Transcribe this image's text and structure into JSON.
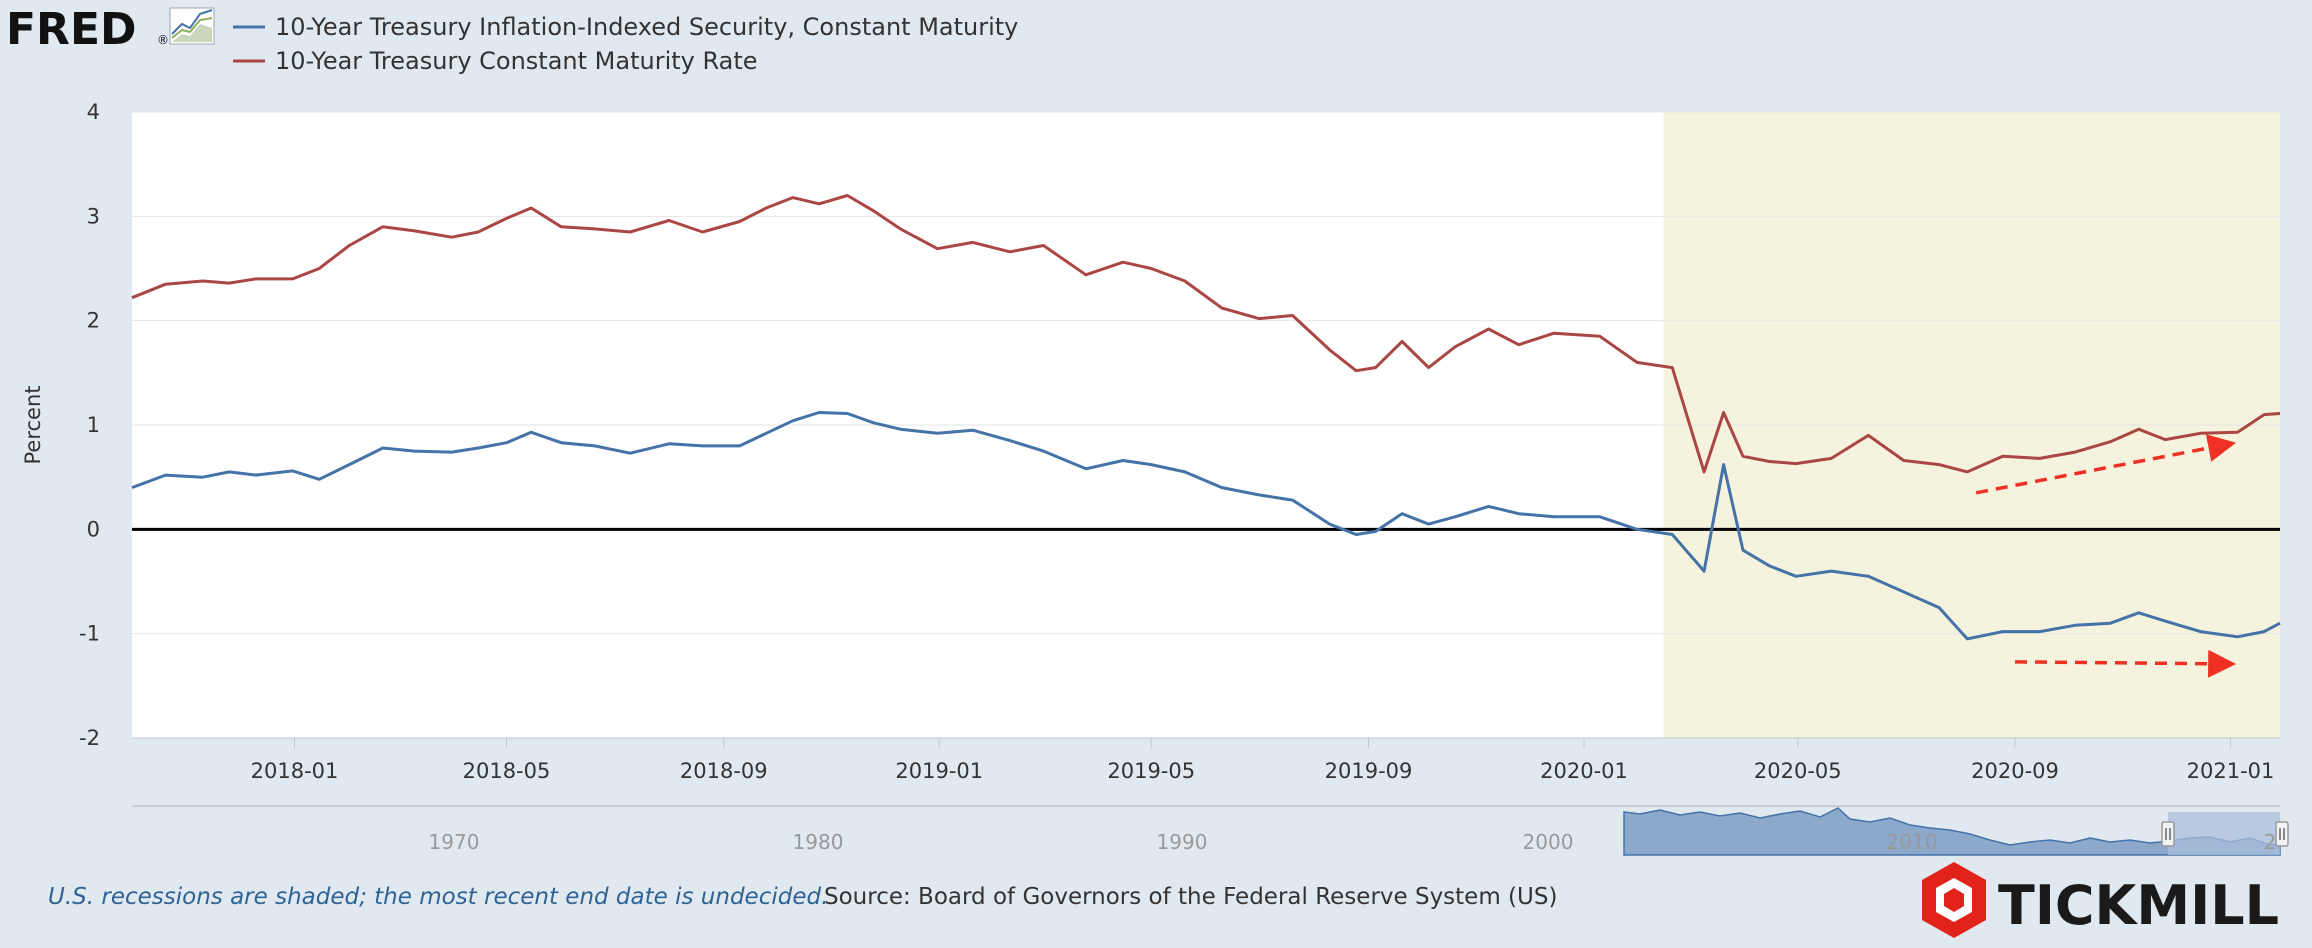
{
  "header": {
    "logo_text": "FRED",
    "logo_mark": "®",
    "logo_icon": "line-chart-icon"
  },
  "footer": {
    "recession_note": "U.S. recessions are shaded; the most recent end date is undecided.",
    "source": "Source: Board of Governors of the Federal Reserve System (US)",
    "watermark": "TICKMILL"
  },
  "chart_data": {
    "type": "line",
    "ylabel": "Percent",
    "ylim": [
      -2,
      4
    ],
    "yticks": [
      -2,
      -1,
      0,
      1,
      2,
      3,
      4
    ],
    "xlim": [
      "2017-10-01",
      "2021-01-29"
    ],
    "xticks": [
      "2018-01",
      "2018-05",
      "2018-09",
      "2019-01",
      "2019-05",
      "2019-09",
      "2020-01",
      "2020-05",
      "2020-09",
      "2021-01"
    ],
    "grid": true,
    "legend_position": "top-left",
    "zero_line": true,
    "recession_shading": {
      "start": "2020-02-15",
      "end": "2021-01-29",
      "color": "#f5f3dd"
    },
    "series": [
      {
        "name": "10-Year Treasury Inflation-Indexed Security, Constant Maturity",
        "color": "#4572a7",
        "points": [
          [
            "2017-10-01",
            0.4
          ],
          [
            "2017-10-20",
            0.52
          ],
          [
            "2017-11-10",
            0.5
          ],
          [
            "2017-11-25",
            0.55
          ],
          [
            "2017-12-10",
            0.52
          ],
          [
            "2017-12-31",
            0.56
          ],
          [
            "2018-01-15",
            0.48
          ],
          [
            "2018-02-01",
            0.62
          ],
          [
            "2018-02-20",
            0.78
          ],
          [
            "2018-03-10",
            0.75
          ],
          [
            "2018-03-31",
            0.74
          ],
          [
            "2018-04-15",
            0.78
          ],
          [
            "2018-05-01",
            0.83
          ],
          [
            "2018-05-15",
            0.93
          ],
          [
            "2018-06-01",
            0.83
          ],
          [
            "2018-06-20",
            0.8
          ],
          [
            "2018-07-10",
            0.73
          ],
          [
            "2018-08-01",
            0.82
          ],
          [
            "2018-08-20",
            0.8
          ],
          [
            "2018-09-10",
            0.8
          ],
          [
            "2018-09-25",
            0.92
          ],
          [
            "2018-10-10",
            1.04
          ],
          [
            "2018-10-25",
            1.12
          ],
          [
            "2018-11-10",
            1.11
          ],
          [
            "2018-11-25",
            1.02
          ],
          [
            "2018-12-10",
            0.96
          ],
          [
            "2018-12-31",
            0.92
          ],
          [
            "2019-01-20",
            0.95
          ],
          [
            "2019-02-10",
            0.85
          ],
          [
            "2019-03-01",
            0.75
          ],
          [
            "2019-03-25",
            0.58
          ],
          [
            "2019-04-15",
            0.66
          ],
          [
            "2019-05-01",
            0.62
          ],
          [
            "2019-05-20",
            0.55
          ],
          [
            "2019-06-10",
            0.4
          ],
          [
            "2019-07-01",
            0.33
          ],
          [
            "2019-07-20",
            0.28
          ],
          [
            "2019-08-10",
            0.05
          ],
          [
            "2019-08-25",
            -0.05
          ],
          [
            "2019-09-05",
            -0.02
          ],
          [
            "2019-09-20",
            0.15
          ],
          [
            "2019-10-05",
            0.05
          ],
          [
            "2019-10-20",
            0.12
          ],
          [
            "2019-11-08",
            0.22
          ],
          [
            "2019-11-25",
            0.15
          ],
          [
            "2019-12-15",
            0.12
          ],
          [
            "2020-01-10",
            0.12
          ],
          [
            "2020-01-31",
            0.0
          ],
          [
            "2020-02-20",
            -0.05
          ],
          [
            "2020-03-09",
            -0.4
          ],
          [
            "2020-03-20",
            0.62
          ],
          [
            "2020-03-31",
            -0.2
          ],
          [
            "2020-04-15",
            -0.35
          ],
          [
            "2020-04-30",
            -0.45
          ],
          [
            "2020-05-20",
            -0.4
          ],
          [
            "2020-06-10",
            -0.45
          ],
          [
            "2020-06-30",
            -0.6
          ],
          [
            "2020-07-20",
            -0.75
          ],
          [
            "2020-08-05",
            -1.05
          ],
          [
            "2020-08-25",
            -0.98
          ],
          [
            "2020-09-15",
            -0.98
          ],
          [
            "2020-10-05",
            -0.92
          ],
          [
            "2020-10-25",
            -0.9
          ],
          [
            "2020-11-10",
            -0.8
          ],
          [
            "2020-11-25",
            -0.88
          ],
          [
            "2020-12-15",
            -0.98
          ],
          [
            "2021-01-05",
            -1.03
          ],
          [
            "2021-01-20",
            -0.98
          ],
          [
            "2021-01-29",
            -0.9
          ]
        ]
      },
      {
        "name": "10-Year Treasury Constant Maturity Rate",
        "color": "#aa4643",
        "points": [
          [
            "2017-10-01",
            2.22
          ],
          [
            "2017-10-20",
            2.35
          ],
          [
            "2017-11-10",
            2.38
          ],
          [
            "2017-11-25",
            2.36
          ],
          [
            "2017-12-10",
            2.4
          ],
          [
            "2017-12-31",
            2.4
          ],
          [
            "2018-01-15",
            2.5
          ],
          [
            "2018-02-01",
            2.72
          ],
          [
            "2018-02-20",
            2.9
          ],
          [
            "2018-03-10",
            2.86
          ],
          [
            "2018-03-31",
            2.8
          ],
          [
            "2018-04-15",
            2.85
          ],
          [
            "2018-05-01",
            2.98
          ],
          [
            "2018-05-15",
            3.08
          ],
          [
            "2018-06-01",
            2.9
          ],
          [
            "2018-06-20",
            2.88
          ],
          [
            "2018-07-10",
            2.85
          ],
          [
            "2018-08-01",
            2.96
          ],
          [
            "2018-08-20",
            2.85
          ],
          [
            "2018-09-10",
            2.95
          ],
          [
            "2018-09-25",
            3.08
          ],
          [
            "2018-10-10",
            3.18
          ],
          [
            "2018-10-25",
            3.12
          ],
          [
            "2018-11-10",
            3.2
          ],
          [
            "2018-11-25",
            3.05
          ],
          [
            "2018-12-10",
            2.88
          ],
          [
            "2018-12-31",
            2.69
          ],
          [
            "2019-01-20",
            2.75
          ],
          [
            "2019-02-10",
            2.66
          ],
          [
            "2019-03-01",
            2.72
          ],
          [
            "2019-03-25",
            2.44
          ],
          [
            "2019-04-15",
            2.56
          ],
          [
            "2019-05-01",
            2.5
          ],
          [
            "2019-05-20",
            2.38
          ],
          [
            "2019-06-10",
            2.12
          ],
          [
            "2019-07-01",
            2.02
          ],
          [
            "2019-07-20",
            2.05
          ],
          [
            "2019-08-10",
            1.72
          ],
          [
            "2019-08-25",
            1.52
          ],
          [
            "2019-09-05",
            1.55
          ],
          [
            "2019-09-20",
            1.8
          ],
          [
            "2019-10-05",
            1.55
          ],
          [
            "2019-10-20",
            1.75
          ],
          [
            "2019-11-08",
            1.92
          ],
          [
            "2019-11-25",
            1.77
          ],
          [
            "2019-12-15",
            1.88
          ],
          [
            "2020-01-10",
            1.85
          ],
          [
            "2020-01-31",
            1.6
          ],
          [
            "2020-02-20",
            1.55
          ],
          [
            "2020-03-09",
            0.55
          ],
          [
            "2020-03-20",
            1.12
          ],
          [
            "2020-03-31",
            0.7
          ],
          [
            "2020-04-15",
            0.65
          ],
          [
            "2020-04-30",
            0.63
          ],
          [
            "2020-05-20",
            0.68
          ],
          [
            "2020-06-10",
            0.9
          ],
          [
            "2020-06-30",
            0.66
          ],
          [
            "2020-07-20",
            0.62
          ],
          [
            "2020-08-05",
            0.55
          ],
          [
            "2020-08-25",
            0.7
          ],
          [
            "2020-09-15",
            0.68
          ],
          [
            "2020-10-05",
            0.74
          ],
          [
            "2020-10-25",
            0.84
          ],
          [
            "2020-11-10",
            0.96
          ],
          [
            "2020-11-25",
            0.86
          ],
          [
            "2020-12-15",
            0.92
          ],
          [
            "2021-01-05",
            0.93
          ],
          [
            "2021-01-20",
            1.1
          ],
          [
            "2021-01-29",
            1.11
          ]
        ]
      }
    ],
    "annotations": [
      {
        "type": "arrow",
        "color": "#ee3124",
        "style": "dashed",
        "from": [
          "2020-08-10",
          0.35
        ],
        "to": [
          "2021-01-01",
          0.82
        ]
      },
      {
        "type": "arrow",
        "color": "#ee3124",
        "style": "dashed",
        "from": [
          "2020-09-01",
          -1.27
        ],
        "to": [
          "2021-01-01",
          -1.29
        ]
      }
    ],
    "navigator": {
      "ticks": [
        "1970",
        "1980",
        "1990",
        "2000",
        "2010",
        "2"
      ]
    }
  }
}
